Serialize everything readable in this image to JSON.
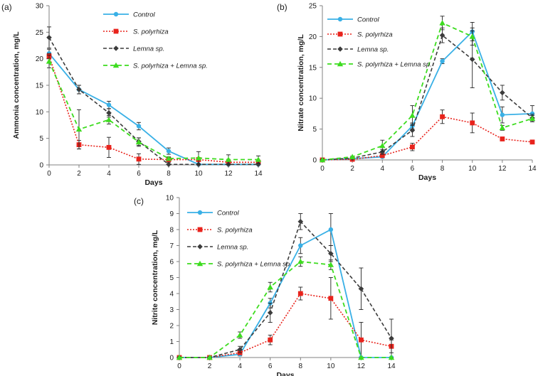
{
  "colors": {
    "control": "#39b0e6",
    "spirodela": "#e8231c",
    "lemna": "#3c3c3c",
    "combined": "#3ddc1f",
    "axis": "#808080",
    "errorbar": "#222222"
  },
  "legend_labels": [
    "Control",
    "S. polyrhiza",
    "Lemna sp.",
    "S. polyrhiza + Lemna sp."
  ],
  "chart_data": [
    {
      "type": "line",
      "panel_label": "(a)",
      "title": "",
      "xlabel": "Days",
      "ylabel": "Ammonia concentration, mg/L",
      "x": [
        0,
        2,
        4,
        6,
        8,
        10,
        12,
        14
      ],
      "xlim": [
        0,
        14
      ],
      "ylim": [
        0,
        30
      ],
      "yticks": [
        0,
        5,
        10,
        15,
        20,
        25,
        30
      ],
      "series": [
        {
          "name": "Control",
          "values": [
            21,
            14.2,
            11.3,
            7.3,
            2.6,
            0.1,
            0.1,
            0.1
          ],
          "errors": [
            0.8,
            0.8,
            0.7,
            0.7,
            0.6,
            0,
            0,
            0
          ]
        },
        {
          "name": "S. polyrhiza",
          "values": [
            20.5,
            3.8,
            3.3,
            1.1,
            1.0,
            1.0,
            0.5,
            0.5
          ],
          "errors": [
            0.5,
            0.8,
            1.9,
            1.0,
            0.5,
            0.3,
            0.4,
            0.4
          ]
        },
        {
          "name": "Lemna sp.",
          "values": [
            24,
            14.2,
            9.8,
            4.4,
            0.1,
            0.1,
            0.1,
            0.1
          ],
          "errors": [
            2.0,
            0.8,
            0.8,
            0.7,
            0,
            0,
            0,
            0
          ]
        },
        {
          "name": "S. polyrhiza + Lemna sp.",
          "values": [
            19.5,
            6.7,
            8.5,
            4.3,
            1.2,
            1.3,
            1.0,
            1.0
          ],
          "errors": [
            1.2,
            3.7,
            0.8,
            0.8,
            0.3,
            1.2,
            0.9,
            0.7
          ]
        }
      ]
    },
    {
      "type": "line",
      "panel_label": "(b)",
      "title": "",
      "xlabel": "Days",
      "ylabel": "Nitrate concentration, mg/L",
      "x": [
        0,
        2,
        4,
        6,
        8,
        10,
        12,
        14
      ],
      "xlim": [
        0,
        14
      ],
      "ylim": [
        0,
        25
      ],
      "yticks": [
        0,
        5,
        10,
        15,
        20,
        25
      ],
      "series": [
        {
          "name": "Control",
          "values": [
            0,
            0.2,
            0.5,
            5.5,
            16.0,
            20.8,
            7.3,
            7.5
          ],
          "errors": [
            0,
            0,
            0,
            0.5,
            0.4,
            1.5,
            1.3,
            1.3
          ]
        },
        {
          "name": "S. polyrhiza",
          "values": [
            0,
            0.1,
            0.7,
            2.1,
            7.0,
            6.0,
            3.4,
            2.9
          ],
          "errors": [
            0,
            0,
            0.2,
            0.6,
            1.1,
            1.6,
            0.3,
            0.2
          ]
        },
        {
          "name": "Lemna sp.",
          "values": [
            0,
            0.3,
            1.3,
            4.8,
            20.2,
            16.3,
            10.9,
            6.8
          ],
          "errors": [
            0,
            0.1,
            0.4,
            1.0,
            1.2,
            4.6,
            1.2,
            0.6
          ]
        },
        {
          "name": "S. polyrhiza + Lemna sp.",
          "values": [
            0,
            0.5,
            2.3,
            7.2,
            22.2,
            20.0,
            5.2,
            6.7
          ],
          "errors": [
            0,
            0.1,
            0.9,
            1.6,
            1.1,
            1.4,
            0.4,
            0.5
          ]
        }
      ]
    },
    {
      "type": "line",
      "panel_label": "(c)",
      "title": "",
      "xlabel": "Days",
      "ylabel": "Nitrite concentration, mg/L",
      "x": [
        0,
        2,
        4,
        6,
        8,
        10,
        12,
        14
      ],
      "xlim": [
        0,
        14
      ],
      "ylim": [
        0,
        10
      ],
      "yticks": [
        0,
        1,
        2,
        3,
        4,
        5,
        6,
        7,
        8,
        9,
        10
      ],
      "series": [
        {
          "name": "Control",
          "values": [
            0,
            0,
            0.2,
            3.4,
            7.0,
            8.0,
            0,
            0
          ],
          "errors": [
            0,
            0,
            0.1,
            0.3,
            0.5,
            1.0,
            0,
            0
          ]
        },
        {
          "name": "S. polyrhiza",
          "values": [
            0,
            0,
            0.3,
            1.1,
            4.0,
            3.7,
            1.1,
            0.7
          ],
          "errors": [
            0,
            0,
            0.1,
            0.3,
            0.4,
            1.3,
            1.1,
            0.4
          ]
        },
        {
          "name": "Lemna sp.",
          "values": [
            0,
            0,
            0.5,
            2.8,
            8.5,
            6.5,
            4.3,
            1.2
          ],
          "errors": [
            0,
            0,
            0.2,
            0.6,
            0.5,
            0.5,
            1.3,
            1.2
          ]
        },
        {
          "name": "S. polyrhiza + Lemna sp.",
          "values": [
            0,
            0,
            1.4,
            4.4,
            6.0,
            5.8,
            0,
            0
          ],
          "errors": [
            0,
            0,
            0.2,
            0.3,
            0.3,
            0.3,
            0,
            0
          ]
        }
      ]
    }
  ]
}
